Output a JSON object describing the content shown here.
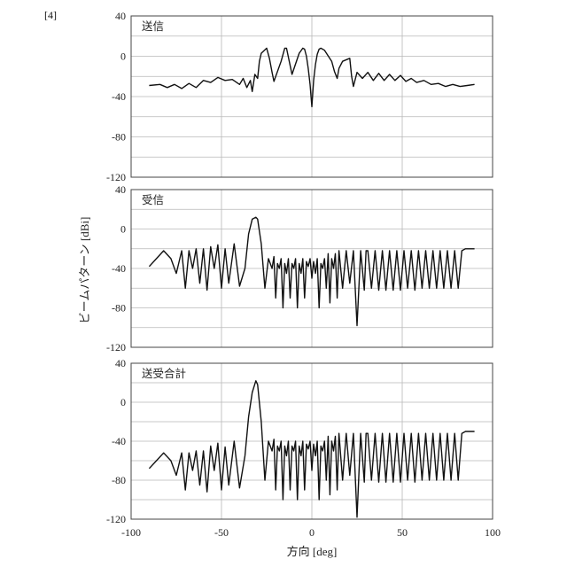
{
  "figure_label": "[4]",
  "chart_data": [
    {
      "type": "line",
      "title": "送信",
      "xlim": [
        -90,
        90
      ],
      "ylim": [
        -120,
        40
      ],
      "y_ticks": [
        40,
        0,
        -40,
        -80,
        -120
      ],
      "grid": true,
      "series": [
        {
          "x": [
            -90,
            -84,
            -80,
            -76,
            -72,
            -68,
            -64,
            -60,
            -56,
            -52,
            -48,
            -44,
            -40,
            -38,
            -36,
            -34,
            -33,
            -31.5,
            -30,
            -29,
            -28,
            -25,
            -23.5,
            -22,
            -21,
            -17,
            -15,
            -14,
            -12.5,
            -11,
            -7,
            -5,
            -4,
            -3,
            -2,
            -1,
            0,
            1,
            2,
            3,
            4,
            5,
            7,
            11,
            12.5,
            14,
            15,
            17,
            21,
            22,
            23,
            25,
            28,
            31,
            34,
            37,
            40,
            43,
            46,
            49,
            52,
            55,
            58,
            62,
            66,
            70,
            74,
            78,
            82,
            86,
            90
          ],
          "y": [
            -29,
            -28,
            -31,
            -28,
            -32,
            -27,
            -31,
            -24,
            -26,
            -21,
            -24,
            -23,
            -28,
            -22,
            -31,
            -24,
            -35,
            -18,
            -22,
            -5,
            3,
            8,
            -2,
            -16,
            -25,
            -5,
            8,
            8,
            -5,
            -18,
            3,
            8,
            7,
            0,
            -12,
            -28,
            -50,
            -24,
            -8,
            2,
            7,
            8,
            6,
            -5,
            -15,
            -22,
            -12,
            -5,
            -2,
            -20,
            -30,
            -16,
            -22,
            -16,
            -24,
            -17,
            -24,
            -18,
            -24,
            -19,
            -25,
            -22,
            -26,
            -24,
            -28,
            -27,
            -30,
            -28,
            -30,
            -29,
            -28
          ]
        }
      ]
    },
    {
      "type": "line",
      "title": "受信",
      "xlim": [
        -90,
        90
      ],
      "ylim": [
        -120,
        40
      ],
      "y_ticks": [
        40,
        0,
        -40,
        -80,
        -120
      ],
      "grid": true,
      "series": [
        {
          "x": [
            -90,
            -86,
            -82,
            -78,
            -75,
            -72,
            -70,
            -68,
            -66,
            -64,
            -62,
            -60,
            -58,
            -56,
            -54,
            -52,
            -50,
            -48,
            -46,
            -43,
            -40,
            -37,
            -35,
            -33,
            -31,
            -30,
            -28,
            -26,
            -24,
            -22,
            -21,
            -20,
            -19,
            -18,
            -17,
            -16,
            -15,
            -14,
            -13,
            -12,
            -11,
            -10,
            -9,
            -8,
            -7,
            -6,
            -5,
            -4,
            -3,
            -2,
            -1,
            0,
            1,
            2,
            3,
            4,
            5,
            6,
            7,
            8,
            9,
            10,
            11,
            12,
            13,
            14,
            15,
            17,
            19,
            21,
            23,
            25,
            27,
            29,
            30,
            31,
            33,
            35,
            37,
            39,
            41,
            43,
            45,
            47,
            49,
            51,
            53,
            55,
            57,
            59,
            61,
            63,
            65,
            67,
            69,
            71,
            73,
            75,
            77,
            79,
            81,
            83,
            85,
            88,
            90
          ],
          "y": [
            -38,
            -30,
            -22,
            -30,
            -45,
            -22,
            -60,
            -22,
            -40,
            -20,
            -55,
            -20,
            -62,
            -18,
            -40,
            -16,
            -60,
            -20,
            -55,
            -15,
            -58,
            -40,
            -5,
            10,
            12,
            10,
            -15,
            -60,
            -30,
            -40,
            -28,
            -70,
            -35,
            -40,
            -30,
            -80,
            -35,
            -45,
            -30,
            -70,
            -35,
            -40,
            -30,
            -80,
            -35,
            -45,
            -30,
            -70,
            -33,
            -38,
            -30,
            -50,
            -33,
            -45,
            -30,
            -80,
            -35,
            -40,
            -30,
            -60,
            -25,
            -75,
            -30,
            -40,
            -25,
            -70,
            -22,
            -60,
            -22,
            -55,
            -22,
            -98,
            -22,
            -62,
            -22,
            -22,
            -60,
            -22,
            -62,
            -22,
            -62,
            -22,
            -62,
            -22,
            -62,
            -22,
            -60,
            -22,
            -62,
            -22,
            -60,
            -22,
            -60,
            -22,
            -60,
            -22,
            -60,
            -22,
            -60,
            -22,
            -60,
            -22,
            -20,
            -20,
            -20
          ]
        }
      ]
    },
    {
      "type": "line",
      "title": "送受合計",
      "xlim": [
        -90,
        90
      ],
      "ylim": [
        -120,
        40
      ],
      "y_ticks": [
        40,
        0,
        -40,
        -80,
        -120
      ],
      "grid": true,
      "series": [
        {
          "x": [
            -90,
            -86,
            -82,
            -78,
            -75,
            -72,
            -70,
            -68,
            -66,
            -64,
            -62,
            -60,
            -58,
            -56,
            -54,
            -52,
            -50,
            -48,
            -46,
            -43,
            -40,
            -37,
            -35,
            -33,
            -31,
            -30,
            -28,
            -26,
            -24,
            -22,
            -21,
            -20,
            -19,
            -18,
            -17,
            -16,
            -15,
            -14,
            -13,
            -12,
            -11,
            -10,
            -9,
            -8,
            -7,
            -6,
            -5,
            -4,
            -3,
            -2,
            -1,
            0,
            1,
            2,
            3,
            4,
            5,
            6,
            7,
            8,
            9,
            10,
            11,
            12,
            13,
            14,
            15,
            17,
            19,
            21,
            23,
            25,
            27,
            29,
            30,
            31,
            33,
            35,
            37,
            39,
            41,
            43,
            45,
            47,
            49,
            51,
            53,
            55,
            57,
            59,
            61,
            63,
            65,
            67,
            69,
            71,
            73,
            75,
            77,
            79,
            81,
            83,
            85,
            88,
            90
          ],
          "y": [
            -68,
            -60,
            -52,
            -60,
            -75,
            -52,
            -90,
            -52,
            -70,
            -50,
            -85,
            -50,
            -92,
            -45,
            -70,
            -42,
            -90,
            -46,
            -85,
            -40,
            -88,
            -55,
            -15,
            10,
            22,
            18,
            -20,
            -80,
            -40,
            -50,
            -38,
            -90,
            -45,
            -50,
            -40,
            -100,
            -45,
            -55,
            -40,
            -90,
            -45,
            -50,
            -40,
            -100,
            -45,
            -55,
            -40,
            -90,
            -43,
            -48,
            -40,
            -70,
            -43,
            -55,
            -40,
            -100,
            -45,
            -50,
            -40,
            -80,
            -35,
            -95,
            -40,
            -50,
            -35,
            -90,
            -32,
            -80,
            -32,
            -75,
            -32,
            -118,
            -32,
            -82,
            -32,
            -32,
            -80,
            -32,
            -82,
            -32,
            -82,
            -32,
            -82,
            -32,
            -82,
            -32,
            -80,
            -32,
            -82,
            -32,
            -80,
            -32,
            -80,
            -32,
            -80,
            -32,
            -80,
            -32,
            -80,
            -32,
            -80,
            -32,
            -30,
            -30,
            -30
          ]
        }
      ]
    }
  ],
  "x_ticks": [
    -100,
    -50,
    0,
    50,
    100
  ],
  "x_title": "方向 [deg]",
  "y_title": "ビームパターン [dBi]",
  "colors": {
    "line": "#111111",
    "grid": "#b8b8b8",
    "frame": "#444444"
  }
}
